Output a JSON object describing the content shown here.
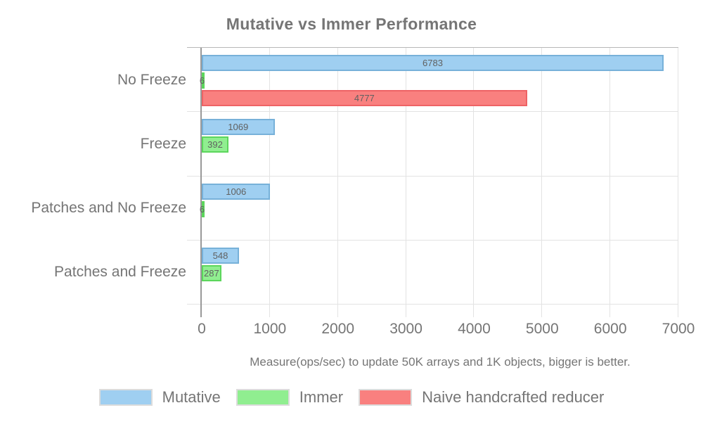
{
  "chart_data": {
    "type": "bar",
    "orientation": "horizontal",
    "title": "Mutative vs Immer Performance",
    "subtitle": "Measure(ops/sec) to update 50K arrays and 1K objects, bigger is better.",
    "categories": [
      "No Freeze",
      "Freeze",
      "Patches and No Freeze",
      "Patches and Freeze"
    ],
    "series": [
      {
        "name": "Mutative",
        "color": "#9fcff1",
        "border_color": "#77b1d9",
        "values": [
          6783,
          1069,
          1006,
          548
        ]
      },
      {
        "name": "Immer",
        "color": "#90ee90",
        "border_color": "#5cd65c",
        "values": [
          6,
          392,
          6,
          287
        ]
      },
      {
        "name": "Naive handcrafted reducer",
        "color": "#f9807f",
        "border_color": "#ee6365",
        "values": [
          4777,
          null,
          null,
          null
        ]
      }
    ],
    "xlim": [
      0,
      7000
    ],
    "x_ticks": [
      0,
      1000,
      2000,
      3000,
      4000,
      5000,
      6000,
      7000
    ],
    "grid": true,
    "value_labels": true,
    "legend_position": "bottom"
  },
  "colors": {
    "background": "#ffffff",
    "text": "#757575",
    "value_label": "#616161",
    "grid": "#e3e3e3",
    "top_border": "#b8b8b8",
    "axis": "#999999",
    "legend_swatch_border": "#dcdcdc"
  }
}
